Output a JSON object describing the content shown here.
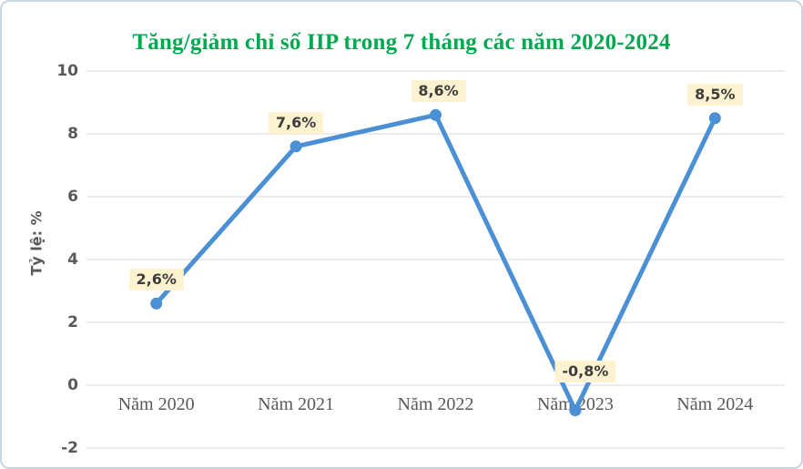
{
  "frame": {
    "border_color": "#c9d6e2",
    "background": "#ffffff"
  },
  "chart_data": {
    "type": "line",
    "title": "Tăng/giảm chỉ số IIP trong 7 tháng các năm 2020-2024",
    "title_color": "#00a94f",
    "ylabel": "Tỷ lệ: %",
    "categories": [
      "Năm 2020",
      "Năm 2021",
      "Năm 2022",
      "Năm 2023",
      "Năm 2024"
    ],
    "values": [
      2.6,
      7.6,
      8.6,
      -0.8,
      8.5
    ],
    "data_labels": [
      "2,6%",
      "7,6%",
      "8,6%",
      "-0,8%",
      "8,5%"
    ],
    "ylim": [
      -2,
      10
    ],
    "yticks": [
      10,
      8,
      6,
      4,
      2,
      0,
      -2
    ],
    "grid": "horizontal",
    "legend": "none",
    "series_color": "#4b90d5",
    "marker": "circle",
    "gridline_color": "#d9d9d9",
    "axis_text_color": "#595959",
    "label_bg": "#fdf3d0",
    "label_text_color": "#3d3d3d"
  }
}
